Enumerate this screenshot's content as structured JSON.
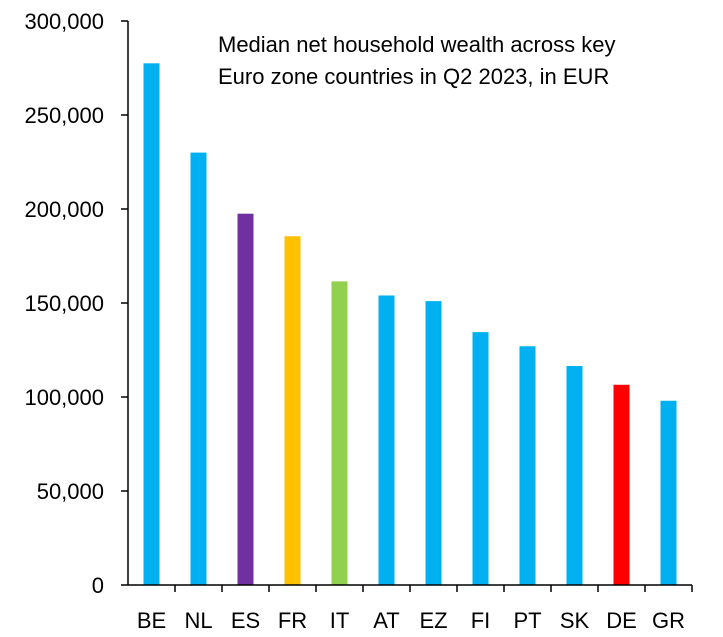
{
  "chart_data": {
    "type": "bar",
    "title_lines": [
      "Median net household wealth across key",
      "Euro zone countries in Q2 2023, in EUR"
    ],
    "categories": [
      "BE",
      "NL",
      "ES",
      "FR",
      "IT",
      "AT",
      "EZ",
      "FI",
      "PT",
      "SK",
      "DE",
      "GR"
    ],
    "values": [
      277500,
      230000,
      197500,
      185500,
      161500,
      154000,
      151000,
      134500,
      127000,
      116500,
      106500,
      98000
    ],
    "colors": [
      "#00B0F0",
      "#00B0F0",
      "#7030A0",
      "#FFC000",
      "#92D050",
      "#00B0F0",
      "#00B0F0",
      "#00B0F0",
      "#00B0F0",
      "#00B0F0",
      "#FF0000",
      "#00B0F0"
    ],
    "ylim": [
      0,
      300000
    ],
    "yticks": [
      0,
      50000,
      100000,
      150000,
      200000,
      250000,
      300000
    ],
    "ytick_labels": [
      "0",
      "50,000",
      "100,000",
      "150,000",
      "200,000",
      "250,000",
      "300,000"
    ],
    "grid": false,
    "legend": "none"
  }
}
